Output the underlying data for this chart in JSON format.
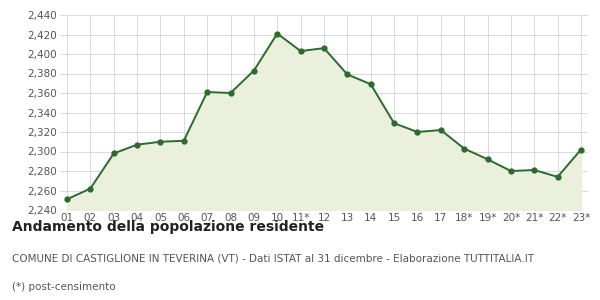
{
  "x_labels": [
    "01",
    "02",
    "03",
    "04",
    "05",
    "06",
    "07",
    "08",
    "09",
    "10",
    "11*",
    "12",
    "13",
    "14",
    "15",
    "16",
    "17",
    "18*",
    "19*",
    "20*",
    "21*",
    "22*",
    "23*"
  ],
  "y_values": [
    2251,
    2262,
    2298,
    2307,
    2310,
    2311,
    2361,
    2360,
    2383,
    2421,
    2403,
    2406,
    2379,
    2369,
    2329,
    2320,
    2322,
    2303,
    2292,
    2280,
    2281,
    2274,
    2302
  ],
  "y_min": 2240,
  "y_max": 2440,
  "y_ticks": [
    2240,
    2260,
    2280,
    2300,
    2320,
    2340,
    2360,
    2380,
    2400,
    2420,
    2440
  ],
  "line_color": "#2d6a2d",
  "fill_color": "#eaf0dc",
  "marker_color": "#2d6a2d",
  "bg_color": "#ffffff",
  "grid_color": "#cccccc",
  "title": "Andamento della popolazione residente",
  "subtitle": "COMUNE DI CASTIGLIONE IN TEVERINA (VT) - Dati ISTAT al 31 dicembre - Elaborazione TUTTITALIA.IT",
  "footnote": "(*) post-censimento",
  "title_fontsize": 10,
  "subtitle_fontsize": 7.5,
  "footnote_fontsize": 7.5,
  "tick_fontsize": 7.5
}
